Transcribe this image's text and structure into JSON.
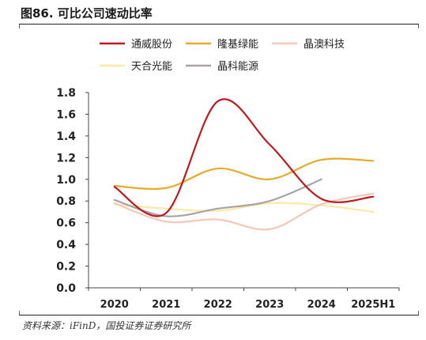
{
  "figure": {
    "title": "图86. 可比公司速动比率",
    "source": "资料来源：iFinD，国投证券证券研究所"
  },
  "chart_data": {
    "type": "line",
    "categories": [
      "2020",
      "2021",
      "2022",
      "2023",
      "2024",
      "2025H1"
    ],
    "ylim": [
      0.0,
      1.8
    ],
    "yticks": [
      "0.0",
      "0.2",
      "0.4",
      "0.6",
      "0.8",
      "1.0",
      "1.2",
      "1.4",
      "1.6",
      "1.8"
    ],
    "grid": false,
    "legend_position": "top",
    "smooth": true,
    "series": [
      {
        "name": "通威股份",
        "color": "#c0181f",
        "values": [
          0.93,
          0.69,
          1.72,
          1.32,
          0.82,
          0.84
        ]
      },
      {
        "name": "隆基绿能",
        "color": "#e5ab2c",
        "values": [
          0.94,
          0.92,
          1.1,
          1.0,
          1.18,
          1.17
        ]
      },
      {
        "name": "晶澳科技",
        "color": "#f3c8b8",
        "values": [
          0.78,
          0.61,
          0.63,
          0.54,
          0.77,
          0.87
        ]
      },
      {
        "name": "天合光能",
        "color": "#faeaa6",
        "values": [
          0.77,
          0.73,
          0.71,
          0.78,
          0.76,
          0.7
        ]
      },
      {
        "name": "晶科能源",
        "color": "#a9a2a4",
        "values": [
          0.81,
          0.66,
          0.73,
          0.8,
          1.0,
          null
        ]
      }
    ]
  }
}
